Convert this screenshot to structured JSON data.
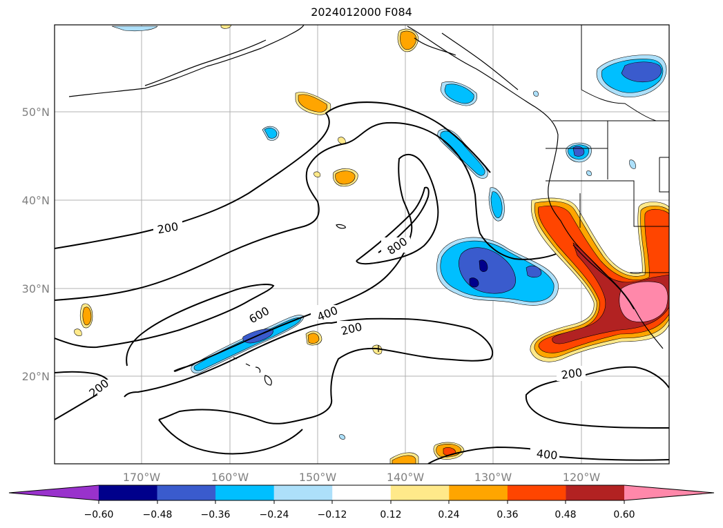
{
  "title": "2024012000 F084",
  "map": {
    "lon_range": [
      -180,
      -110
    ],
    "lat_range": [
      10,
      60
    ],
    "lat_ticks": [
      {
        "label": "20°N"
      },
      {
        "label": "30°N"
      },
      {
        "label": "40°N"
      },
      {
        "label": "50°N"
      }
    ],
    "lon_ticks": [
      {
        "label": "170°W"
      },
      {
        "label": "160°W"
      },
      {
        "label": "150°W"
      },
      {
        "label": "140°W"
      },
      {
        "label": "130°W"
      },
      {
        "label": "120°W"
      }
    ],
    "grid": true,
    "contour_labels": [
      "200",
      "200",
      "200",
      "200",
      "400",
      "400",
      "600",
      "800"
    ]
  },
  "colorbar": {
    "ticks": [
      "−0.60",
      "−0.48",
      "−0.36",
      "−0.24",
      "−0.12",
      "0.12",
      "0.24",
      "0.36",
      "0.48",
      "0.60"
    ],
    "colors": [
      "#9932CC",
      "#00008B",
      "#3A5BCD",
      "#00BFFF",
      "#ADE0FA",
      "#FFFFFF",
      "#FFE98A",
      "#FFA500",
      "#FF4500",
      "#B22222",
      "#FF88AA"
    ]
  }
}
